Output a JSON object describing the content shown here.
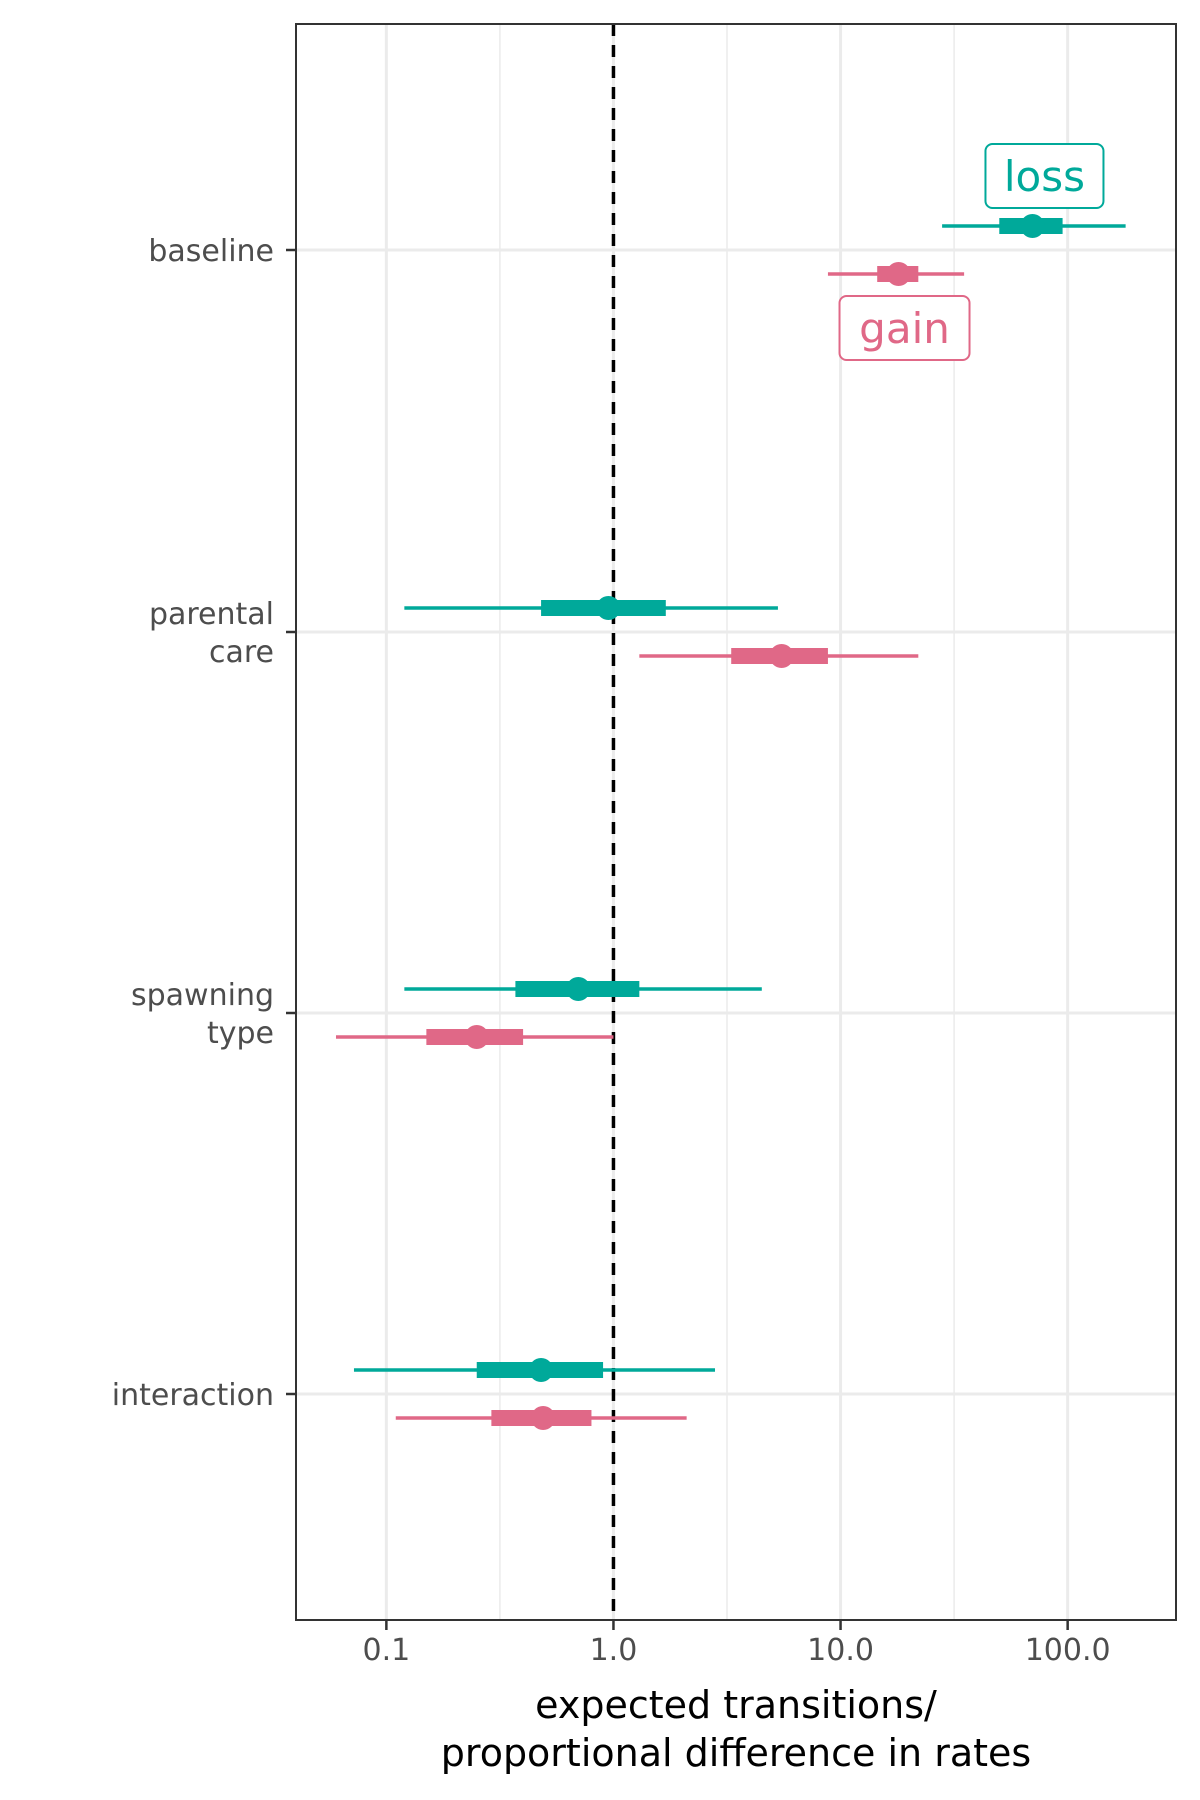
{
  "chart_data": {
    "type": "forest",
    "x_scale": "log10",
    "xlim": [
      0.04,
      300
    ],
    "x_ticks": [
      0.1,
      1.0,
      10.0,
      100.0
    ],
    "x_tick_labels": [
      "0.1",
      "1.0",
      "10.0",
      "100.0"
    ],
    "xlabel_lines": [
      "expected transitions/",
      "proportional difference in rates"
    ],
    "ylabel": "",
    "reference_line": 1.0,
    "reference_line_style": "dashed",
    "grid": true,
    "categories": [
      {
        "lines": [
          "baseline"
        ]
      },
      {
        "lines": [
          "parental",
          "care"
        ]
      },
      {
        "lines": [
          "spawning",
          "type"
        ]
      },
      {
        "lines": [
          "interaction"
        ]
      }
    ],
    "series": [
      {
        "name": "loss",
        "color": "#00a99a",
        "label_position": "above",
        "estimates": [
          {
            "category": "baseline",
            "median": 70,
            "inner": [
              50,
              95
            ],
            "outer": [
              28,
              180
            ]
          },
          {
            "category": "parental care",
            "median": 0.95,
            "inner": [
              0.48,
              1.7
            ],
            "outer": [
              0.12,
              5.3
            ]
          },
          {
            "category": "spawning type",
            "median": 0.7,
            "inner": [
              0.37,
              1.3
            ],
            "outer": [
              0.12,
              4.5
            ]
          },
          {
            "category": "interaction",
            "median": 0.48,
            "inner": [
              0.25,
              0.9
            ],
            "outer": [
              0.072,
              2.8
            ]
          }
        ]
      },
      {
        "name": "gain",
        "color": "#e06887",
        "label_position": "below",
        "estimates": [
          {
            "category": "baseline",
            "median": 18,
            "inner": [
              14.5,
              22
            ],
            "outer": [
              8.8,
              35
            ]
          },
          {
            "category": "parental care",
            "median": 5.5,
            "inner": [
              3.3,
              8.8
            ],
            "outer": [
              1.3,
              22
            ]
          },
          {
            "category": "spawning type",
            "median": 0.25,
            "inner": [
              0.15,
              0.4
            ],
            "outer": [
              0.06,
              1.0
            ]
          },
          {
            "category": "interaction",
            "median": 0.49,
            "inner": [
              0.29,
              0.8
            ],
            "outer": [
              0.11,
              2.1
            ]
          }
        ]
      }
    ]
  }
}
